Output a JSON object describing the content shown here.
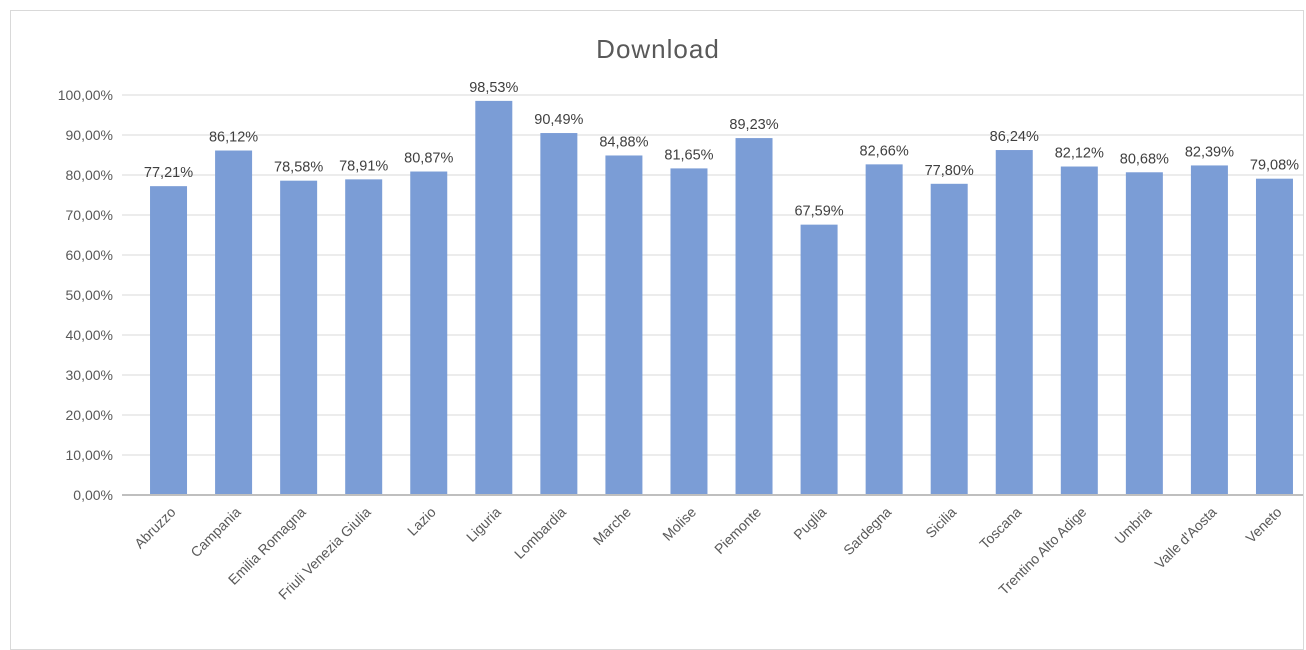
{
  "chart_data": {
    "type": "bar",
    "title": "Download",
    "xlabel": "",
    "ylabel": "",
    "ylim": [
      0,
      100
    ],
    "ytick_step": 10,
    "ytick_labels": [
      "0,00%",
      "10,00%",
      "20,00%",
      "30,00%",
      "40,00%",
      "50,00%",
      "60,00%",
      "70,00%",
      "80,00%",
      "90,00%",
      "100,00%"
    ],
    "grid": true,
    "bar_color": "#7b9dd6",
    "categories": [
      "Abruzzo",
      "Campania",
      "Emilia Romagna",
      "Friuli Venezia Giulia",
      "Lazio",
      "Liguria",
      "Lombardia",
      "Marche",
      "Molise",
      "Piemonte",
      "Puglia",
      "Sardegna",
      "Sicilia",
      "Toscana",
      "Trentino Alto Adige",
      "Umbria",
      "Valle d'Aosta",
      "Veneto"
    ],
    "values": [
      77.21,
      86.12,
      78.58,
      78.91,
      80.87,
      98.53,
      90.49,
      84.88,
      81.65,
      89.23,
      67.59,
      82.66,
      77.8,
      86.24,
      82.12,
      80.68,
      82.39,
      79.08
    ],
    "data_labels": [
      "77,21%",
      "86,12%",
      "78,58%",
      "78,91%",
      "80,87%",
      "98,53%",
      "90,49%",
      "84,88%",
      "81,65%",
      "89,23%",
      "67,59%",
      "82,66%",
      "77,80%",
      "86,24%",
      "82,12%",
      "80,68%",
      "82,39%",
      "79,08%"
    ]
  }
}
